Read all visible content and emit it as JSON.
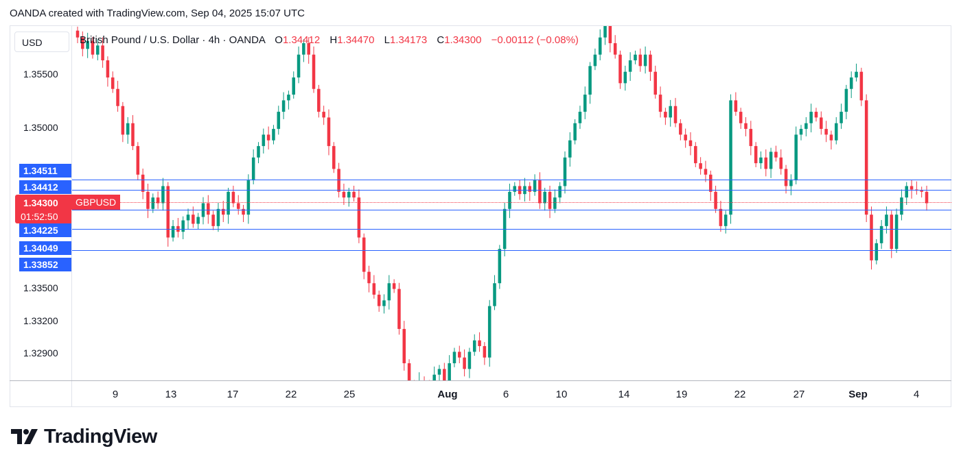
{
  "header": {
    "credit": "OANDA created with TradingView.com, Sep 04, 2025 15:07 UTC"
  },
  "chart": {
    "currency_label": "USD",
    "legend": {
      "symbol": "British Pound / U.S. Dollar · 4h · OANDA",
      "o_label": "O",
      "o_value": "1.34412",
      "h_label": "H",
      "h_value": "1.34470",
      "l_label": "L",
      "l_value": "1.34173",
      "c_label": "C",
      "c_value": "1.34300",
      "change": "−0.00112 (−0.08%)"
    },
    "price_ticks": [
      "1.35500",
      "1.35000",
      "1.33500",
      "1.33200",
      "1.32900"
    ],
    "level_tags": [
      "1.34511",
      "1.34412",
      "1.34225",
      "1.34049",
      "1.33852"
    ],
    "current_price": "1.34300",
    "countdown": "01:52:50",
    "symbol_tag": "GBPUSD",
    "time_ticks": [
      "9",
      "13",
      "17",
      "22",
      "25",
      "Aug",
      "6",
      "10",
      "14",
      "19",
      "22",
      "27",
      "Sep",
      "4"
    ],
    "colors": {
      "up": "#089981",
      "down": "#f23645",
      "level_line": "#2962ff"
    }
  },
  "chart_data": {
    "type": "candlestick",
    "title": "British Pound / U.S. Dollar · 4h · OANDA",
    "ylabel": "USD",
    "ylim": [
      1.3275,
      1.3585
    ],
    "horizontal_levels": [
      1.34511,
      1.34412,
      1.34225,
      1.34049,
      1.33852
    ],
    "close_path": [
      1.3575,
      1.3565,
      1.3572,
      1.356,
      1.3568,
      1.3555,
      1.354,
      1.353,
      1.3515,
      1.349,
      1.35,
      1.348,
      1.3455,
      1.344,
      1.3425,
      1.3435,
      1.343,
      1.3445,
      1.34,
      1.341,
      1.3405,
      1.3415,
      1.342,
      1.3412,
      1.3418,
      1.343,
      1.342,
      1.341,
      1.3425,
      1.342,
      1.344,
      1.343,
      1.3425,
      1.342,
      1.345,
      1.347,
      1.348,
      1.349,
      1.3485,
      1.3495,
      1.351,
      1.352,
      1.3525,
      1.354,
      1.356,
      1.357,
      1.356,
      1.353,
      1.351,
      1.3505,
      1.348,
      1.346,
      1.344,
      1.3435,
      1.344,
      1.3435,
      1.34,
      1.337,
      1.336,
      1.335,
      1.334,
      1.3345,
      1.336,
      1.3355,
      1.332,
      1.329,
      1.327,
      1.3268,
      1.3275,
      1.327,
      1.3265,
      1.328,
      1.3285,
      1.3275,
      1.329,
      1.33,
      1.3295,
      1.3285,
      1.33,
      1.331,
      1.3305,
      1.3295,
      1.334,
      1.336,
      1.339,
      1.3425,
      1.344,
      1.3445,
      1.3438,
      1.3445,
      1.344,
      1.345,
      1.343,
      1.344,
      1.3425,
      1.3435,
      1.3445,
      1.347,
      1.3485,
      1.35,
      1.351,
      1.3525,
      1.355,
      1.356,
      1.3575,
      1.3585,
      1.357,
      1.356,
      1.3535,
      1.3545,
      1.3555,
      1.356,
      1.355,
      1.356,
      1.3545,
      1.3525,
      1.351,
      1.3505,
      1.3515,
      1.35,
      1.349,
      1.3485,
      1.348,
      1.3465,
      1.346,
      1.3455,
      1.344,
      1.3425,
      1.341,
      1.342,
      1.352,
      1.351,
      1.35,
      1.3495,
      1.348,
      1.3465,
      1.347,
      1.346,
      1.3475,
      1.347,
      1.346,
      1.3445,
      1.345,
      1.349,
      1.3495,
      1.35,
      1.351,
      1.3505,
      1.3495,
      1.349,
      1.3485,
      1.35,
      1.351,
      1.353,
      1.354,
      1.3545,
      1.352,
      1.342,
      1.338,
      1.3395,
      1.341,
      1.342,
      1.339,
      1.342,
      1.3435,
      1.3445,
      1.3442,
      1.3441,
      1.344,
      1.343
    ]
  }
}
